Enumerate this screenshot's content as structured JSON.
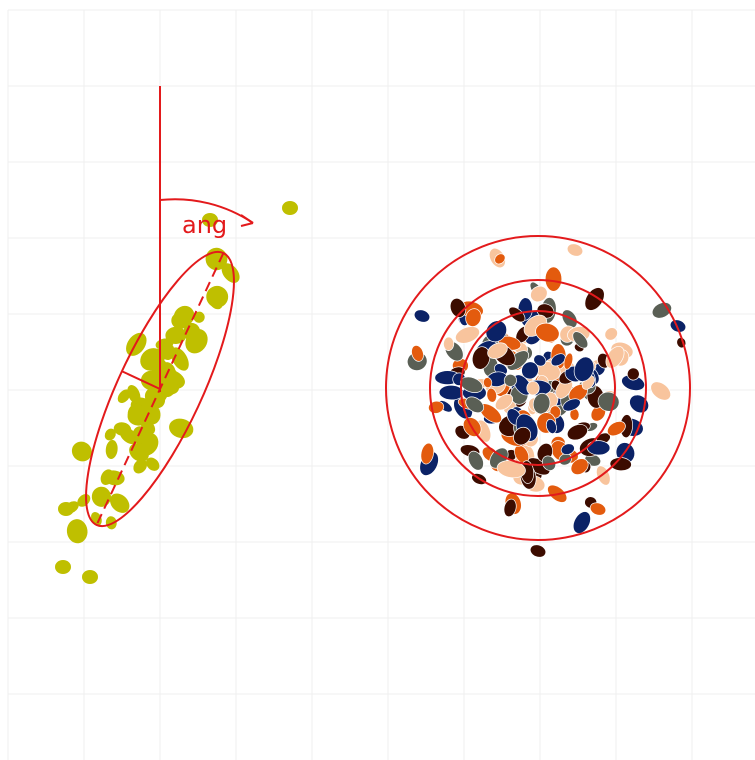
{
  "diagram": {
    "angle_label": "ang",
    "colors": {
      "grid": "#efefef",
      "annotation_red": "#e31a1c",
      "left_points": "#bfbf00",
      "palette_right": [
        "#3c0c00",
        "#5a5f55",
        "#0b2266",
        "#e35b0e",
        "#f8c49d"
      ]
    },
    "left_panel": {
      "description_shape": "elongated ellipse tilted from vertical by an angle",
      "point_count": 58
    },
    "right_panel": {
      "description_shape": "three concentric circles around a roughly isotropic cluster",
      "point_count": 200
    }
  }
}
